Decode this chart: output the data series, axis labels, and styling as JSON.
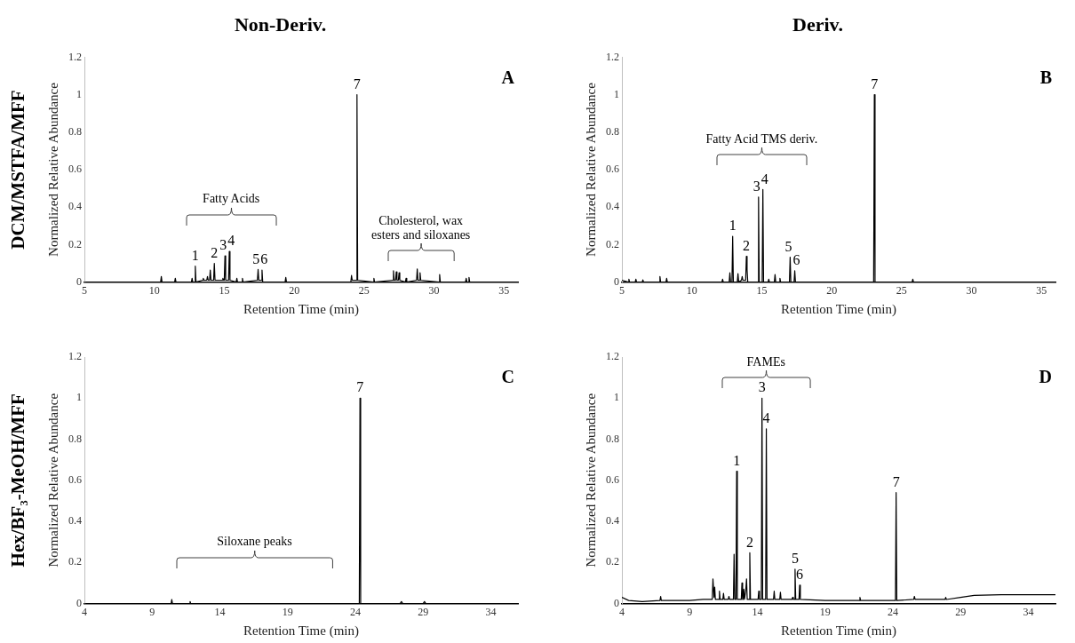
{
  "chart_data": [
    {
      "type": "line",
      "title": "Non-Deriv.",
      "xlabel": "Retention Time (min)",
      "ylabel": "Normalized Relative Abundance",
      "xlim": [
        5,
        36
      ],
      "xticks": [
        5,
        10,
        15,
        20,
        25,
        30,
        35
      ],
      "ylim": [
        0,
        1.2
      ],
      "yticks": [
        0,
        0.2,
        0.4,
        0.6,
        0.8,
        1,
        1.2
      ],
      "series": [
        {
          "color": "#000000",
          "x": [
            5,
            10.45,
            10.5,
            10.55,
            11.45,
            11.5,
            11.55,
            12.65,
            12.7,
            12.75,
            12.88,
            12.93,
            12.98,
            13.45,
            13.5,
            13.55,
            13.75,
            13.8,
            13.85,
            13.95,
            14.0,
            14.05,
            14.24,
            14.29,
            14.34,
            14.85,
            14.9,
            14.95,
            15.0,
            15.05,
            15.1,
            15.31,
            15.36,
            15.41,
            15.85,
            15.9,
            15.95,
            16.25,
            16.3,
            16.35,
            17.37,
            17.42,
            17.47,
            17.65,
            17.7,
            17.75,
            19.35,
            19.4,
            19.45,
            24.05,
            24.1,
            24.15,
            24.44,
            24.49,
            24.54,
            25.65,
            25.7,
            25.75,
            27.05,
            27.1,
            27.15,
            27.25,
            27.3,
            27.35,
            27.45,
            27.5,
            27.55,
            27.95,
            28.0,
            28.05,
            28.75,
            28.8,
            28.85,
            28.95,
            29.0,
            29.05,
            30.35,
            30.4,
            30.45,
            32.25,
            32.3,
            32.35,
            32.45,
            32.5,
            32.55,
            36
          ],
          "values": [
            0,
            0,
            0.03,
            0,
            0,
            0.02,
            0,
            0,
            0.02,
            0,
            0,
            0.085,
            0,
            0.01,
            0.02,
            0.01,
            0.01,
            0.03,
            0.01,
            0.01,
            0.064,
            0.01,
            0.01,
            0.1,
            0.01,
            0.01,
            0.02,
            0.01,
            0.01,
            0.14,
            0.01,
            0.01,
            0.164,
            0.01,
            0,
            0.02,
            0,
            0,
            0.02,
            0,
            0.01,
            0.067,
            0.01,
            0.01,
            0.064,
            0,
            0,
            0.025,
            0,
            0,
            0.035,
            0.01,
            0.01,
            1.0,
            0.01,
            0,
            0.02,
            0,
            0.01,
            0.06,
            0.01,
            0.01,
            0.055,
            0.01,
            0.01,
            0.05,
            0.01,
            0,
            0.02,
            0,
            0.01,
            0.07,
            0.01,
            0.01,
            0.05,
            0.01,
            0,
            0.04,
            0,
            0,
            0.02,
            0,
            0,
            0.025,
            0,
            0
          ]
        }
      ],
      "annotations": [
        "A",
        "DCM/MSTFA/MFF",
        "Fatty Acids",
        "Cholesterol, wax esters and siloxanes",
        {
          "text": "1",
          "x": 12.93,
          "y": 0.085
        },
        {
          "text": "2",
          "x": 14.29,
          "y": 0.1
        },
        {
          "text": "3",
          "x": 15.05,
          "y": 0.14
        },
        {
          "text": "4",
          "x": 15.36,
          "y": 0.164
        },
        {
          "text": "5",
          "x": 17.42,
          "y": 0.067
        },
        {
          "text": "6",
          "x": 17.7,
          "y": 0.064
        },
        {
          "text": "7",
          "x": 24.49,
          "y": 1.0
        }
      ]
    },
    {
      "type": "line",
      "title": "Deriv.",
      "xlabel": "Retention Time (min)",
      "ylabel": "Normalized Relative Abundance",
      "xlim": [
        5,
        36
      ],
      "xticks": [
        5,
        10,
        15,
        20,
        25,
        30,
        35
      ],
      "ylim": [
        0,
        1.2
      ],
      "yticks": [
        0,
        0.2,
        0.4,
        0.6,
        0.8,
        1,
        1.2
      ],
      "series": [
        {
          "color": "#000000",
          "x": [
            5,
            5.45,
            5.5,
            5.55,
            5.95,
            6.0,
            6.05,
            6.45,
            6.5,
            6.55,
            7.67,
            7.72,
            7.77,
            8.15,
            8.2,
            8.25,
            12.15,
            12.2,
            12.25,
            12.67,
            12.72,
            12.77,
            12.87,
            12.92,
            12.97,
            13.25,
            13.3,
            13.35,
            13.55,
            13.6,
            13.65,
            13.85,
            13.9,
            13.95,
            14.0,
            14.72,
            14.77,
            14.82,
            15.03,
            15.08,
            15.13,
            15.45,
            15.5,
            15.55,
            15.9,
            15.95,
            16.0,
            16.25,
            16.3,
            16.35,
            16.98,
            17.03,
            17.08,
            17.31,
            17.36,
            17.41,
            23.0,
            23.05,
            23.1,
            25.75,
            25.8,
            25.85,
            36
          ],
          "values": [
            0.01,
            0,
            0.015,
            0,
            0,
            0.015,
            0,
            0,
            0.012,
            0,
            0,
            0.03,
            0,
            0,
            0.02,
            0,
            0,
            0.015,
            0,
            0,
            0.05,
            0,
            0,
            0.244,
            0,
            0,
            0.045,
            0,
            0.01,
            0.03,
            0.01,
            0.01,
            0.137,
            0.065,
            0,
            0,
            0.454,
            0,
            0,
            0.494,
            0,
            0,
            0.015,
            0,
            0,
            0.04,
            0,
            0,
            0.02,
            0,
            0,
            0.133,
            0,
            0,
            0.06,
            0,
            0,
            1.0,
            0,
            0,
            0.015,
            0,
            0
          ]
        }
      ],
      "annotations": [
        "B",
        "Fatty Acid TMS deriv.",
        {
          "text": "1",
          "x": 12.92,
          "y": 0.244
        },
        {
          "text": "2",
          "x": 13.9,
          "y": 0.137
        },
        {
          "text": "3",
          "x": 14.77,
          "y": 0.454
        },
        {
          "text": "4",
          "x": 15.08,
          "y": 0.494
        },
        {
          "text": "5",
          "x": 17.03,
          "y": 0.133
        },
        {
          "text": "6",
          "x": 17.36,
          "y": 0.06
        },
        {
          "text": "7",
          "x": 23.05,
          "y": 1.0
        }
      ]
    },
    {
      "type": "line",
      "xlabel": "Retention Time (min)",
      "ylabel": "Normalized Relative Abundance",
      "xlim": [
        4,
        36
      ],
      "xticks": [
        4,
        9,
        14,
        19,
        24,
        29,
        34
      ],
      "ylim": [
        0,
        1.2
      ],
      "yticks": [
        0,
        0.2,
        0.4,
        0.6,
        0.8,
        1,
        1.2
      ],
      "series": [
        {
          "color": "#000000",
          "x": [
            4,
            10.4,
            10.45,
            10.5,
            11.75,
            11.8,
            11.85,
            24.29,
            24.34,
            24.39,
            27.3,
            27.4,
            27.5,
            29,
            29.1,
            29.2,
            36
          ],
          "values": [
            0,
            0,
            0.02,
            0,
            0,
            0.01,
            0,
            0,
            1.0,
            0,
            0,
            0.01,
            0,
            0,
            0.01,
            0,
            0
          ]
        }
      ],
      "annotations": [
        "C",
        "Hex/BF₃-MeOH/MFF",
        "Siloxane peaks",
        {
          "text": "7",
          "x": 24.34,
          "y": 1.0
        }
      ]
    },
    {
      "type": "line",
      "xlabel": "Retention Time (min)",
      "ylabel": "Normalized Relative Abundance",
      "xlim": [
        4,
        36
      ],
      "xticks": [
        4,
        9,
        14,
        19,
        24,
        29,
        34
      ],
      "ylim": [
        0,
        1.2
      ],
      "yticks": [
        0,
        0.2,
        0.4,
        0.6,
        0.8,
        1,
        1.2
      ],
      "series": [
        {
          "color": "#000000",
          "x": [
            4,
            4.5,
            5.5,
            6.81,
            6.86,
            6.91,
            8,
            9,
            10,
            10.67,
            10.72,
            10.8,
            10.85,
            10.9,
            11.15,
            11.2,
            11.25,
            11.45,
            11.5,
            11.55,
            11.85,
            11.9,
            11.95,
            12.23,
            12.28,
            12.33,
            12.42,
            12.47,
            12.52,
            12.81,
            12.86,
            12.91,
            12.95,
            13.0,
            13.05,
            13.1,
            13.15,
            13.2,
            13.25,
            13.39,
            13.44,
            13.49,
            14.05,
            14.1,
            14.15,
            14.29,
            14.34,
            14.39,
            14.61,
            14.66,
            14.71,
            15.19,
            15.24,
            15.29,
            15.65,
            15.7,
            15.75,
            16.55,
            16.6,
            16.65,
            16.73,
            16.78,
            16.83,
            17.07,
            17.12,
            17.17,
            19,
            21.52,
            21.57,
            21.62,
            24.19,
            24.24,
            24.29,
            25.54,
            25.59,
            25.64,
            27.85,
            27.9,
            27.95,
            29,
            30,
            32,
            36
          ],
          "values": [
            0.03,
            0.015,
            0.01,
            0.015,
            0.035,
            0.015,
            0.015,
            0.015,
            0.02,
            0.02,
            0.12,
            0.03,
            0.08,
            0.02,
            0.02,
            0.06,
            0.02,
            0.02,
            0.05,
            0.02,
            0.02,
            0.035,
            0.02,
            0.02,
            0.24,
            0.02,
            0.02,
            0.644,
            0.02,
            0.02,
            0.1,
            0.02,
            0.02,
            0.07,
            0.02,
            0.02,
            0.07,
            0.12,
            0.02,
            0.02,
            0.247,
            0.02,
            0.02,
            0.06,
            0.02,
            0.02,
            1.0,
            0.02,
            0.02,
            0.85,
            0.02,
            0.02,
            0.06,
            0.02,
            0.02,
            0.055,
            0.02,
            0.02,
            0.03,
            0.02,
            0.02,
            0.167,
            0.02,
            0.02,
            0.09,
            0.02,
            0.015,
            0.015,
            0.03,
            0.015,
            0.015,
            0.54,
            0.015,
            0.02,
            0.035,
            0.02,
            0.02,
            0.03,
            0.02,
            0.03,
            0.04,
            0.043,
            0.043
          ]
        }
      ],
      "annotations": [
        "D",
        "FAMEs",
        {
          "text": "1",
          "x": 12.47,
          "y": 0.644
        },
        {
          "text": "2",
          "x": 13.44,
          "y": 0.247
        },
        {
          "text": "3",
          "x": 14.34,
          "y": 1.0
        },
        {
          "text": "4",
          "x": 14.66,
          "y": 0.85
        },
        {
          "text": "5",
          "x": 16.78,
          "y": 0.167
        },
        {
          "text": "6",
          "x": 17.12,
          "y": 0.09
        },
        {
          "text": "7",
          "x": 24.24,
          "y": 0.54
        }
      ]
    }
  ]
}
